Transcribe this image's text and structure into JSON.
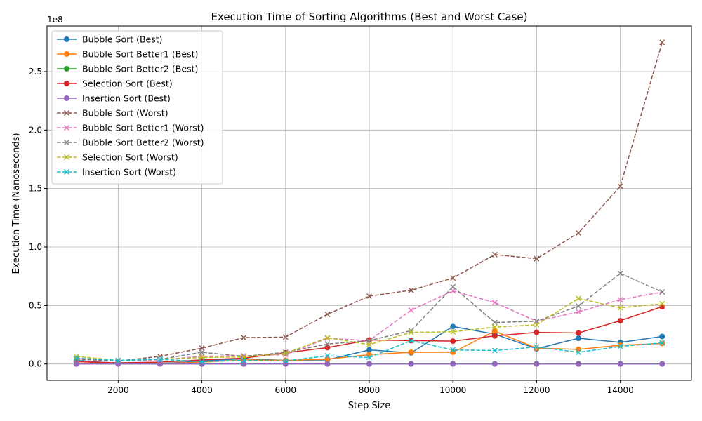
{
  "chart_data": {
    "type": "line",
    "title": "Execution Time of Sorting Algorithms (Best and Worst Case)",
    "xlabel": "Step Size",
    "ylabel": "Execution Time (Nanoseconds)",
    "y_offset_label": "1e8",
    "y_scale_factor": 100000000,
    "xlim": [
      300,
      15700
    ],
    "ylim": [
      -14000000,
      289000000
    ],
    "xticks": [
      2000,
      4000,
      6000,
      8000,
      10000,
      12000,
      14000
    ],
    "xtick_labels": [
      "2000",
      "4000",
      "6000",
      "8000",
      "10000",
      "12000",
      "14000"
    ],
    "yticks": [
      0,
      50000000,
      100000000,
      150000000,
      200000000,
      250000000
    ],
    "ytick_labels": [
      "0.0",
      "0.5",
      "1.0",
      "1.5",
      "2.0",
      "2.5"
    ],
    "grid": true,
    "legend_position": "top-left",
    "x": [
      1000,
      2000,
      3000,
      4000,
      5000,
      6000,
      7000,
      8000,
      9000,
      10000,
      11000,
      12000,
      13000,
      14000,
      15000
    ],
    "series": [
      {
        "name": "Bubble Sort (Best)",
        "color": "#1f77b4",
        "style": "solid",
        "marker": "circle",
        "values": [
          3000000,
          500000,
          300000,
          2500000,
          4500000,
          3000000,
          3500000,
          12000000,
          9500000,
          32000000,
          25500000,
          13000000,
          22000000,
          18500000,
          23500000
        ]
      },
      {
        "name": "Bubble Sort Better1 (Best)",
        "color": "#ff7f0e",
        "style": "solid",
        "marker": "circle",
        "values": [
          2000000,
          500000,
          300000,
          1500000,
          3500000,
          3000000,
          4000000,
          8000000,
          10000000,
          10000000,
          28000000,
          13500000,
          12500000,
          16000000,
          17500000
        ]
      },
      {
        "name": "Bubble Sort Better2 (Best)",
        "color": "#2ca02c",
        "style": "solid",
        "marker": "circle",
        "values": [
          100000,
          100000,
          100000,
          100000,
          100000,
          100000,
          100000,
          100000,
          100000,
          100000,
          100000,
          100000,
          100000,
          100000,
          100000
        ]
      },
      {
        "name": "Selection Sort (Best)",
        "color": "#d62728",
        "style": "solid",
        "marker": "circle",
        "values": [
          2000000,
          1000000,
          1500000,
          3500000,
          5000000,
          9500000,
          14000000,
          20500000,
          20000000,
          19500000,
          24000000,
          27000000,
          26500000,
          37000000,
          49000000
        ]
      },
      {
        "name": "Insertion Sort (Best)",
        "color": "#9467bd",
        "style": "solid",
        "marker": "circle",
        "values": [
          0,
          0,
          0,
          0,
          0,
          0,
          0,
          0,
          0,
          0,
          0,
          0,
          0,
          0,
          0
        ]
      },
      {
        "name": "Bubble Sort (Worst)",
        "color": "#8c564b",
        "style": "dashed",
        "marker": "x",
        "values": [
          4000000,
          2500000,
          6500000,
          13500000,
          22500000,
          23000000,
          42500000,
          58000000,
          63000000,
          73500000,
          93500000,
          90000000,
          112000000,
          152000000,
          275000000
        ]
      },
      {
        "name": "Bubble Sort Better1 (Worst)",
        "color": "#e377c2",
        "style": "dashed",
        "marker": "x",
        "values": [
          4000000,
          2500000,
          3500000,
          6500000,
          7000000,
          8000000,
          22000000,
          20000000,
          46000000,
          62500000,
          52500000,
          36500000,
          44500000,
          55000000,
          61500000
        ]
      },
      {
        "name": "Bubble Sort Better2 (Worst)",
        "color": "#7f7f7f",
        "style": "dashed",
        "marker": "x",
        "values": [
          4000000,
          2500000,
          4000000,
          10000000,
          6500000,
          10000000,
          17000000,
          20000000,
          28500000,
          66000000,
          35500000,
          36500000,
          49500000,
          77500000,
          61500000
        ]
      },
      {
        "name": "Selection Sort (Worst)",
        "color": "#bcbd22",
        "style": "dashed",
        "marker": "x",
        "values": [
          6500000,
          3000000,
          4000000,
          5500000,
          6000000,
          9000000,
          22500000,
          16500000,
          27000000,
          27500000,
          31500000,
          33500000,
          56000000,
          48000000,
          51500000
        ]
      },
      {
        "name": "Insertion Sort (Worst)",
        "color": "#17becf",
        "style": "dashed",
        "marker": "x",
        "values": [
          5000000,
          3000000,
          4000000,
          2000000,
          3000000,
          2500000,
          7000000,
          5500000,
          20000000,
          12000000,
          11500000,
          14500000,
          10000000,
          15000000,
          18000000
        ]
      }
    ]
  }
}
